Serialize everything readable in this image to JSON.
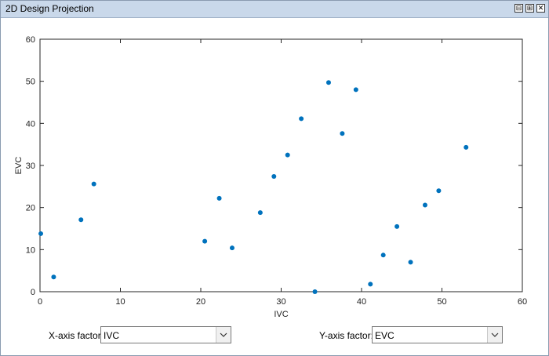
{
  "window": {
    "title": "2D Design Projection",
    "buttons": [
      "⊟",
      "⊞",
      "✕"
    ]
  },
  "chart_data": {
    "type": "scatter",
    "xlabel": "IVC",
    "ylabel": "EVC",
    "xlim": [
      0,
      60
    ],
    "ylim": [
      0,
      60
    ],
    "xticks": [
      0,
      10,
      20,
      30,
      40,
      50,
      60
    ],
    "yticks": [
      0,
      10,
      20,
      30,
      40,
      50,
      60
    ],
    "points": [
      {
        "x": 0.1,
        "y": 13.8
      },
      {
        "x": 1.7,
        "y": 3.5
      },
      {
        "x": 5.1,
        "y": 17.1
      },
      {
        "x": 6.7,
        "y": 25.6
      },
      {
        "x": 20.5,
        "y": 12.0
      },
      {
        "x": 22.3,
        "y": 22.2
      },
      {
        "x": 23.9,
        "y": 10.4
      },
      {
        "x": 27.4,
        "y": 18.8
      },
      {
        "x": 29.1,
        "y": 27.4
      },
      {
        "x": 30.8,
        "y": 32.5
      },
      {
        "x": 32.5,
        "y": 41.1
      },
      {
        "x": 34.2,
        "y": 0.0
      },
      {
        "x": 35.9,
        "y": 49.7
      },
      {
        "x": 37.6,
        "y": 37.6
      },
      {
        "x": 39.3,
        "y": 48.0
      },
      {
        "x": 41.1,
        "y": 1.8
      },
      {
        "x": 42.7,
        "y": 8.7
      },
      {
        "x": 44.4,
        "y": 15.5
      },
      {
        "x": 46.1,
        "y": 7.0
      },
      {
        "x": 47.9,
        "y": 20.6
      },
      {
        "x": 49.6,
        "y": 24.0
      },
      {
        "x": 53.0,
        "y": 34.3
      }
    ],
    "marker_color": "#0072bd"
  },
  "controls": {
    "x_axis_label": "X-axis factor:",
    "x_axis_value": "IVC",
    "y_axis_label": "Y-axis factor:",
    "y_axis_value": "EVC"
  }
}
